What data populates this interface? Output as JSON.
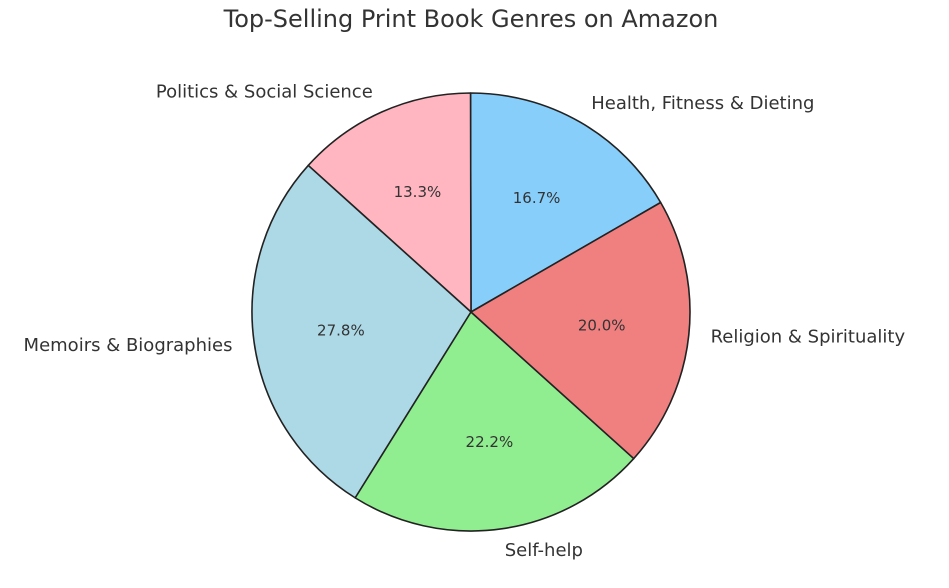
{
  "chart_data": {
    "type": "pie",
    "title": "Top-Selling Print Book Genres on Amazon",
    "slices": [
      {
        "label": "Health, Fitness & Dieting",
        "value": 16.7,
        "pct_label": "16.7%",
        "color": "#87CEFA"
      },
      {
        "label": "Politics & Social Science",
        "value": 13.3,
        "pct_label": "13.3%",
        "color": "#FFB6C1"
      },
      {
        "label": "Memoirs & Biographies",
        "value": 27.8,
        "pct_label": "27.8%",
        "color": "#ADD8E6"
      },
      {
        "label": "Self-help",
        "value": 22.2,
        "pct_label": "22.2%",
        "color": "#90EE90"
      },
      {
        "label": "Religion & Spirituality",
        "value": 20.0,
        "pct_label": "20.0%",
        "color": "#F08080"
      }
    ],
    "start_angle_deg": 30,
    "direction": "counterclockwise",
    "legend": "none"
  }
}
